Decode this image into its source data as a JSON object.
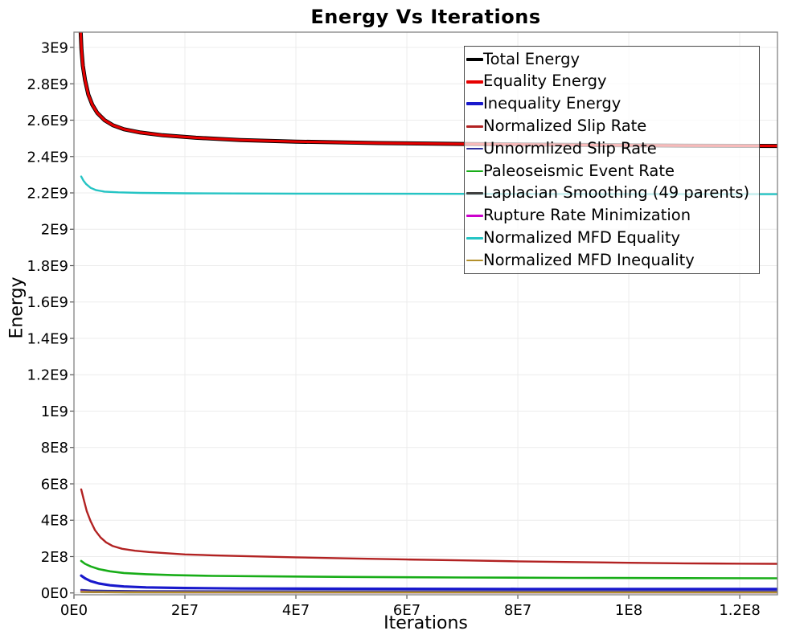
{
  "chart_data": {
    "type": "line",
    "title": "Energy Vs Iterations",
    "xlabel": "Iterations",
    "ylabel": "Energy",
    "xlim": [
      0,
      126800000
    ],
    "ylim": [
      -10000000,
      3084000000
    ],
    "grid": true,
    "legend_position": "top-right",
    "grid_color": "#ececec",
    "border_color": "#828282",
    "tick_color": "#555555",
    "x_ticks": [
      {
        "label": "0E0",
        "value": 0
      },
      {
        "label": "2E7",
        "value": 20000000
      },
      {
        "label": "4E7",
        "value": 40000000
      },
      {
        "label": "6E7",
        "value": 60000000
      },
      {
        "label": "8E7",
        "value": 80000000
      },
      {
        "label": "1E8",
        "value": 100000000
      },
      {
        "label": "1.2E8",
        "value": 120000000
      }
    ],
    "y_ticks": [
      {
        "label": "0E0",
        "value": 0
      },
      {
        "label": "2E8",
        "value": 200000000
      },
      {
        "label": "4E8",
        "value": 400000000
      },
      {
        "label": "6E8",
        "value": 600000000
      },
      {
        "label": "8E8",
        "value": 800000000
      },
      {
        "label": "1E9",
        "value": 1000000000
      },
      {
        "label": "1.2E9",
        "value": 1200000000
      },
      {
        "label": "1.4E9",
        "value": 1400000000
      },
      {
        "label": "1.6E9",
        "value": 1600000000
      },
      {
        "label": "1.8E9",
        "value": 1800000000
      },
      {
        "label": "2E9",
        "value": 2000000000
      },
      {
        "label": "2.2E9",
        "value": 2200000000
      },
      {
        "label": "2.4E9",
        "value": 2400000000
      },
      {
        "label": "2.6E9",
        "value": 2600000000
      },
      {
        "label": "2.8E9",
        "value": 2800000000
      },
      {
        "label": "3E9",
        "value": 3000000000
      }
    ],
    "series": [
      {
        "name": "Total Energy",
        "color": "#000000",
        "width": 5,
        "points": [
          [
            1050000,
            3400000000
          ],
          [
            1100000,
            3250000000
          ],
          [
            1200000,
            3090000000
          ],
          [
            1350000,
            2990000000
          ],
          [
            1600000,
            2900000000
          ],
          [
            2000000,
            2820000000
          ],
          [
            2600000,
            2740000000
          ],
          [
            3300000,
            2685000000
          ],
          [
            4200000,
            2640000000
          ],
          [
            5500000,
            2600000000
          ],
          [
            7000000,
            2572000000
          ],
          [
            9000000,
            2550000000
          ],
          [
            12000000,
            2532000000
          ],
          [
            16000000,
            2517000000
          ],
          [
            22000000,
            2503000000
          ],
          [
            30000000,
            2491000000
          ],
          [
            40000000,
            2482000000
          ],
          [
            55000000,
            2474000000
          ],
          [
            70000000,
            2469000000
          ],
          [
            90000000,
            2464000000
          ],
          [
            110000000,
            2460000000
          ],
          [
            126800000,
            2458000000
          ]
        ]
      },
      {
        "name": "Equality Energy",
        "color": "#e60000",
        "width": 3.2,
        "points": [
          [
            1050000,
            3400000000
          ],
          [
            1100000,
            3250000000
          ],
          [
            1200000,
            3090000000
          ],
          [
            1350000,
            2990000000
          ],
          [
            1600000,
            2900000000
          ],
          [
            2000000,
            2820000000
          ],
          [
            2600000,
            2740000000
          ],
          [
            3300000,
            2685000000
          ],
          [
            4200000,
            2640000000
          ],
          [
            5500000,
            2600000000
          ],
          [
            7000000,
            2572000000
          ],
          [
            9000000,
            2550000000
          ],
          [
            12000000,
            2532000000
          ],
          [
            16000000,
            2517000000
          ],
          [
            22000000,
            2503000000
          ],
          [
            30000000,
            2491000000
          ],
          [
            40000000,
            2482000000
          ],
          [
            55000000,
            2474000000
          ],
          [
            70000000,
            2469000000
          ],
          [
            90000000,
            2464000000
          ],
          [
            110000000,
            2460000000
          ],
          [
            126800000,
            2458000000
          ]
        ]
      },
      {
        "name": "Inequality Energy",
        "color": "#1919cc",
        "width": 3.2,
        "points": [
          [
            1300000,
            95000000
          ],
          [
            2000000,
            80000000
          ],
          [
            3000000,
            65000000
          ],
          [
            4500000,
            52000000
          ],
          [
            6500000,
            42000000
          ],
          [
            9000000,
            35500000
          ],
          [
            13000000,
            30500000
          ],
          [
            20000000,
            27000000
          ],
          [
            30000000,
            24500000
          ],
          [
            50000000,
            23000000
          ],
          [
            80000000,
            22000000
          ],
          [
            126800000,
            21500000
          ]
        ]
      },
      {
        "name": "Normalized Slip Rate",
        "color": "#b22222",
        "width": 2.4,
        "points": [
          [
            1300000,
            570000000
          ],
          [
            1800000,
            510000000
          ],
          [
            2300000,
            450000000
          ],
          [
            3000000,
            395000000
          ],
          [
            3800000,
            345000000
          ],
          [
            4800000,
            305000000
          ],
          [
            5800000,
            278000000
          ],
          [
            7000000,
            258000000
          ],
          [
            8700000,
            243000000
          ],
          [
            11000000,
            232000000
          ],
          [
            13500000,
            225000000
          ],
          [
            17000000,
            218000000
          ],
          [
            20000000,
            212000000
          ],
          [
            25000000,
            207000000
          ],
          [
            30000000,
            203000000
          ],
          [
            40000000,
            196000000
          ],
          [
            50000000,
            190000000
          ],
          [
            60000000,
            184000000
          ],
          [
            70000000,
            179000000
          ],
          [
            80000000,
            174000000
          ],
          [
            90000000,
            170000000
          ],
          [
            100000000,
            166000000
          ],
          [
            110000000,
            163000000
          ],
          [
            120000000,
            161000000
          ],
          [
            126800000,
            160000000
          ]
        ]
      },
      {
        "name": "Unnormlized Slip Rate",
        "color": "#30309e",
        "width": 2.4,
        "points": [
          [
            1300000,
            17000000
          ],
          [
            3000000,
            13500000
          ],
          [
            6000000,
            11500000
          ],
          [
            12000000,
            10500000
          ],
          [
            30000000,
            9500000
          ],
          [
            70000000,
            8800000
          ],
          [
            126800000,
            8500000
          ]
        ]
      },
      {
        "name": "Paleoseismic Event Rate",
        "color": "#18ad18",
        "width": 2.6,
        "points": [
          [
            1300000,
            176000000
          ],
          [
            2000000,
            160000000
          ],
          [
            3000000,
            146000000
          ],
          [
            4500000,
            131000000
          ],
          [
            6500000,
            119000000
          ],
          [
            9000000,
            110000000
          ],
          [
            13000000,
            103000000
          ],
          [
            18000000,
            98000000
          ],
          [
            25000000,
            94000000
          ],
          [
            35000000,
            91000000
          ],
          [
            50000000,
            88000000
          ],
          [
            70000000,
            85000000
          ],
          [
            90000000,
            83000000
          ],
          [
            110000000,
            81500000
          ],
          [
            126800000,
            80500000
          ]
        ]
      },
      {
        "name": "Laplacian Smoothing (49 parents)",
        "color": "#3f3f3f",
        "width": 2.2,
        "points": [
          [
            1300000,
            5000000
          ],
          [
            4000000,
            3500000
          ],
          [
            10000000,
            3000000
          ],
          [
            50000000,
            2800000
          ],
          [
            126800000,
            2700000
          ]
        ]
      },
      {
        "name": "Rupture Rate Minimization",
        "color": "#cc00cc",
        "width": 2.2,
        "points": [
          [
            1300000,
            9000000
          ],
          [
            2500000,
            6000000
          ],
          [
            5000000,
            4500000
          ],
          [
            10000000,
            3800000
          ],
          [
            30000000,
            3400000
          ],
          [
            126800000,
            3200000
          ]
        ]
      },
      {
        "name": "Normalized MFD Equality",
        "color": "#25c4c4",
        "width": 2.4,
        "points": [
          [
            1300000,
            2290000000
          ],
          [
            1700000,
            2268000000
          ],
          [
            2200000,
            2248000000
          ],
          [
            3000000,
            2228000000
          ],
          [
            4000000,
            2215000000
          ],
          [
            5500000,
            2207000000
          ],
          [
            8000000,
            2203000000
          ],
          [
            12000000,
            2200000000
          ],
          [
            20000000,
            2198000000
          ],
          [
            40000000,
            2196000000
          ],
          [
            70000000,
            2194500000
          ],
          [
            100000000,
            2193500000
          ],
          [
            126800000,
            2193000000
          ]
        ]
      },
      {
        "name": "Normalized MFD Inequality",
        "color": "#b3902c",
        "width": 2.4,
        "points": [
          [
            1300000,
            6500000
          ],
          [
            3000000,
            5000000
          ],
          [
            8000000,
            4200000
          ],
          [
            20000000,
            3800000
          ],
          [
            60000000,
            3600000
          ],
          [
            126800000,
            3500000
          ]
        ]
      }
    ]
  }
}
